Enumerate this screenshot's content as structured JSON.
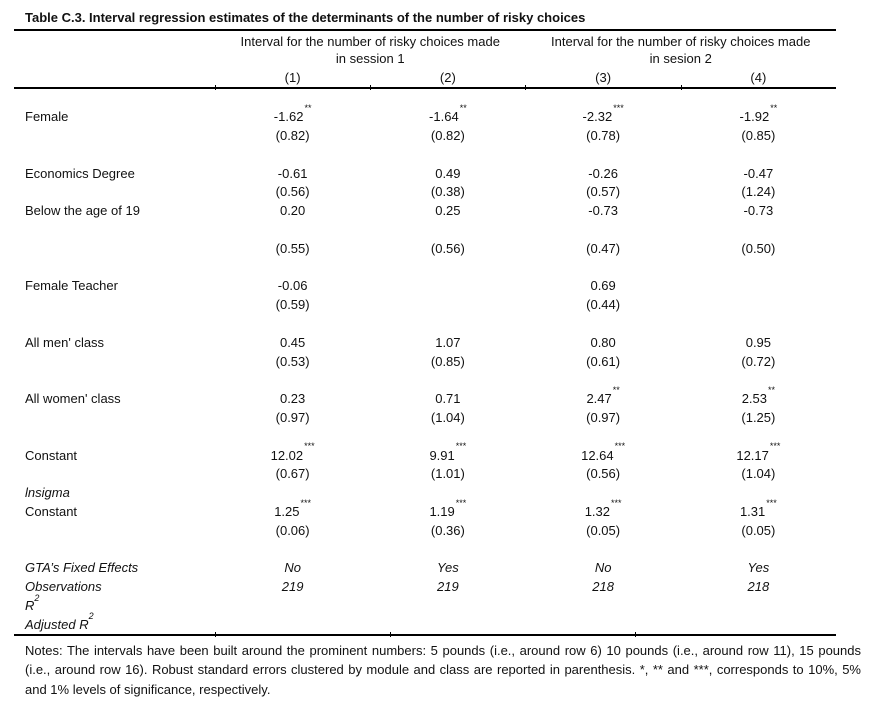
{
  "title": "Table C.3. Interval regression estimates of the determinants of the number of risky choices",
  "colors": {
    "text": "#111111",
    "background": "#ffffff",
    "rule": "#000000"
  },
  "header": {
    "groups": [
      {
        "line1": "Interval for the number of risky choices made",
        "line2": "in session 1"
      },
      {
        "line1": "Interval for the number of risky choices made",
        "line2": "in sesion 2"
      }
    ],
    "columns": [
      "(1)",
      "(2)",
      "(3)",
      "(4)"
    ]
  },
  "body": [
    {
      "type": "spacer"
    },
    {
      "type": "row",
      "label": "Female",
      "cells": [
        {
          "v": "-1.62",
          "s": "**"
        },
        {
          "v": "-1.64",
          "s": "**"
        },
        {
          "v": "-2.32",
          "s": "***"
        },
        {
          "v": "-1.92",
          "s": "**"
        }
      ]
    },
    {
      "type": "row",
      "label": "",
      "cells": [
        {
          "v": "(0.82)"
        },
        {
          "v": "(0.82)"
        },
        {
          "v": "(0.78)"
        },
        {
          "v": "(0.85)"
        }
      ]
    },
    {
      "type": "spacer"
    },
    {
      "type": "row",
      "label": "Economics Degree",
      "cells": [
        {
          "v": "-0.61"
        },
        {
          "v": "0.49"
        },
        {
          "v": "-0.26"
        },
        {
          "v": "-0.47"
        }
      ]
    },
    {
      "type": "row",
      "label": "",
      "cells": [
        {
          "v": "(0.56)"
        },
        {
          "v": "(0.38)"
        },
        {
          "v": "(0.57)"
        },
        {
          "v": "(1.24)"
        }
      ]
    },
    {
      "type": "row",
      "label": "Below the age of 19",
      "cells": [
        {
          "v": "0.20"
        },
        {
          "v": "0.25"
        },
        {
          "v": "-0.73"
        },
        {
          "v": "-0.73"
        }
      ]
    },
    {
      "type": "spacer"
    },
    {
      "type": "row",
      "label": "",
      "cells": [
        {
          "v": "(0.55)"
        },
        {
          "v": "(0.56)"
        },
        {
          "v": "(0.47)"
        },
        {
          "v": "(0.50)"
        }
      ]
    },
    {
      "type": "spacer"
    },
    {
      "type": "row",
      "label": "Female Teacher",
      "cells": [
        {
          "v": "-0.06"
        },
        {
          "v": ""
        },
        {
          "v": "0.69"
        },
        {
          "v": ""
        }
      ]
    },
    {
      "type": "row",
      "label": "",
      "cells": [
        {
          "v": "(0.59)"
        },
        {
          "v": ""
        },
        {
          "v": "(0.44)"
        },
        {
          "v": ""
        }
      ]
    },
    {
      "type": "spacer"
    },
    {
      "type": "row",
      "label": "All men' class",
      "cells": [
        {
          "v": "0.45"
        },
        {
          "v": "1.07"
        },
        {
          "v": "0.80"
        },
        {
          "v": "0.95"
        }
      ]
    },
    {
      "type": "row",
      "label": "",
      "cells": [
        {
          "v": "(0.53)"
        },
        {
          "v": "(0.85)"
        },
        {
          "v": "(0.61)"
        },
        {
          "v": "(0.72)"
        }
      ]
    },
    {
      "type": "spacer"
    },
    {
      "type": "row",
      "label": "All women' class",
      "cells": [
        {
          "v": "0.23"
        },
        {
          "v": "0.71"
        },
        {
          "v": "2.47",
          "s": "**"
        },
        {
          "v": "2.53",
          "s": "**"
        }
      ]
    },
    {
      "type": "row",
      "label": "",
      "cells": [
        {
          "v": "(0.97)"
        },
        {
          "v": "(1.04)"
        },
        {
          "v": "(0.97)"
        },
        {
          "v": "(1.25)"
        }
      ]
    },
    {
      "type": "spacer"
    },
    {
      "type": "row",
      "label": "Constant",
      "cells": [
        {
          "v": "12.02",
          "s": "***"
        },
        {
          "v": "9.91",
          "s": "***"
        },
        {
          "v": "12.64",
          "s": "***"
        },
        {
          "v": "12.17",
          "s": "***"
        }
      ]
    },
    {
      "type": "row",
      "label": "",
      "cells": [
        {
          "v": "(0.67)"
        },
        {
          "v": "(1.01)"
        },
        {
          "v": "(0.56)"
        },
        {
          "v": "(1.04)"
        }
      ]
    },
    {
      "type": "row",
      "label": "lnsigma",
      "italic": true,
      "cells": [
        {
          "v": ""
        },
        {
          "v": ""
        },
        {
          "v": ""
        },
        {
          "v": ""
        }
      ]
    },
    {
      "type": "row",
      "label": "Constant",
      "cells": [
        {
          "v": "1.25",
          "s": "***"
        },
        {
          "v": "1.19",
          "s": "***"
        },
        {
          "v": "1.32",
          "s": "***"
        },
        {
          "v": "1.31",
          "s": "***"
        }
      ]
    },
    {
      "type": "row",
      "label": "",
      "cells": [
        {
          "v": "(0.06)"
        },
        {
          "v": "(0.36)"
        },
        {
          "v": "(0.05)"
        },
        {
          "v": "(0.05)"
        }
      ]
    },
    {
      "type": "spacer"
    },
    {
      "type": "row",
      "label": "GTA’s Fixed Effects",
      "italic": true,
      "cells": [
        {
          "v": "No"
        },
        {
          "v": "Yes"
        },
        {
          "v": "No"
        },
        {
          "v": "Yes"
        }
      ]
    },
    {
      "type": "row",
      "label": "Observations",
      "italic": true,
      "cells": [
        {
          "v": "219"
        },
        {
          "v": "219"
        },
        {
          "v": "218"
        },
        {
          "v": "218"
        }
      ]
    },
    {
      "type": "row",
      "label": "R",
      "label_sup": "2",
      "italic": true,
      "cells": [
        {
          "v": ""
        },
        {
          "v": ""
        },
        {
          "v": ""
        },
        {
          "v": ""
        }
      ]
    },
    {
      "type": "row",
      "label": "Adjusted R",
      "label_sup": "2",
      "italic": true,
      "cells": [
        {
          "v": ""
        },
        {
          "v": ""
        },
        {
          "v": ""
        },
        {
          "v": ""
        }
      ]
    }
  ],
  "notes": "Notes: The intervals have been built around the prominent numbers: 5 pounds (i.e., around row 6) 10 pounds (i.e., around row 11), 15 pounds (i.e., around row 16). Robust standard errors clustered by module and class are reported in parenthesis. *, ** and ***, corresponds to 10%, 5% and 1% levels of significance, respectively."
}
